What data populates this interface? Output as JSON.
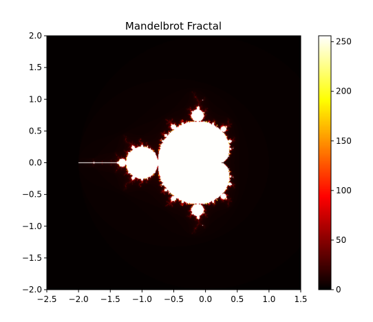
{
  "chart_data": {
    "type": "heatmap",
    "title": "Mandelbrot Fractal",
    "xlabel": "",
    "ylabel": "",
    "xlim": [
      -2.5,
      1.5
    ],
    "ylim": [
      -2.0,
      2.0
    ],
    "x_ticks": [
      -2.5,
      -2.0,
      -1.5,
      -1.0,
      -0.5,
      0.0,
      0.5,
      1.0,
      1.5
    ],
    "x_tick_labels": [
      "−2.5",
      "−2.0",
      "−1.5",
      "−1.0",
      "−0.5",
      "0.0",
      "0.5",
      "1.0",
      "1.5"
    ],
    "y_ticks": [
      -2.0,
      -1.5,
      -1.0,
      -0.5,
      0.0,
      0.5,
      1.0,
      1.5,
      2.0
    ],
    "y_tick_labels": [
      "−2.0",
      "−1.5",
      "−1.0",
      "−0.5",
      "0.0",
      "0.5",
      "1.0",
      "1.5",
      "2.0"
    ],
    "colormap": "hot",
    "max_iterations": 256,
    "colorbar": {
      "min": 0,
      "max": 256,
      "ticks": [
        0,
        50,
        100,
        150,
        200,
        250
      ],
      "tick_labels": [
        "0",
        "50",
        "100",
        "150",
        "200",
        "250"
      ]
    },
    "grid": false
  }
}
